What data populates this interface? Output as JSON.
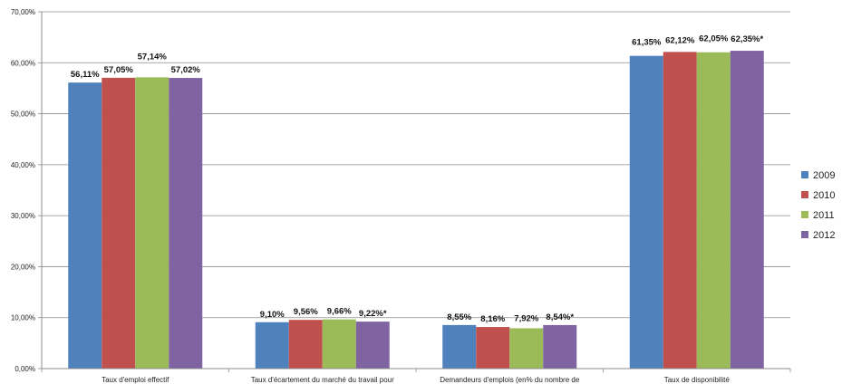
{
  "chart_data": {
    "type": "bar",
    "title": "",
    "xlabel": "",
    "ylabel": "",
    "ylim": [
      0,
      70
    ],
    "ytick_step": 10,
    "ytick_labels": [
      "0,00%",
      "10,00%",
      "20,00%",
      "30,00%",
      "40,00%",
      "50,00%",
      "60,00%",
      "70,00%"
    ],
    "grid": true,
    "legend_position": "right",
    "categories": [
      "Taux d'emploi effectif",
      "Taux d'écartement du marché du travail pour",
      "Demandeurs d'emplois (en% du nombre de",
      "Taux de disponibilité"
    ],
    "series": [
      {
        "name": "2009",
        "color": "#4F81BD",
        "values": [
          56.11,
          9.1,
          8.55,
          61.35
        ],
        "labels": [
          "56,11%",
          "9,10%",
          "8,55%",
          "61,35%"
        ]
      },
      {
        "name": "2010",
        "color": "#C0504D",
        "values": [
          57.05,
          9.56,
          8.16,
          62.12
        ],
        "labels": [
          "57,05%",
          "9,56%",
          "8,16%",
          "62,12%"
        ]
      },
      {
        "name": "2011",
        "color": "#9BBB59",
        "values": [
          57.14,
          9.66,
          7.92,
          62.05
        ],
        "labels": [
          "57,14%",
          "9,66%",
          "7,92%",
          "62,05%"
        ]
      },
      {
        "name": "2012",
        "color": "#8064A2",
        "values": [
          57.02,
          9.22,
          8.54,
          62.35
        ],
        "labels": [
          "57,02%",
          "9,22%*",
          "8,54%*",
          "62,35%*"
        ]
      }
    ]
  }
}
